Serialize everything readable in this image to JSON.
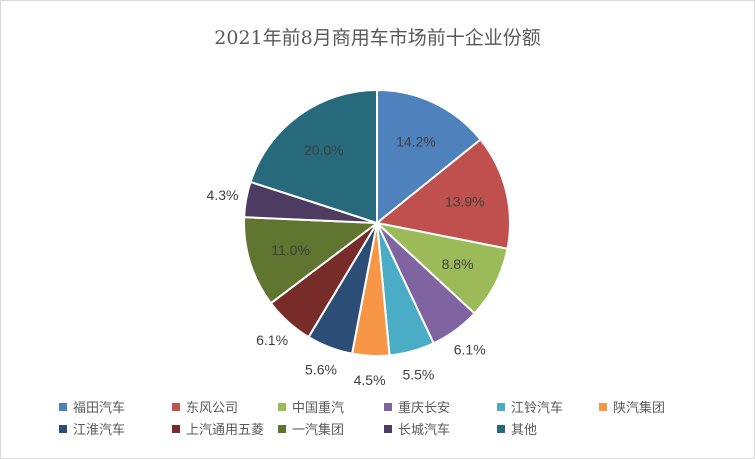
{
  "chart_data": {
    "type": "pie",
    "title": "2021年前8月商用车市场前十企业份额",
    "legend_position": "bottom",
    "series": [
      {
        "name": "福田汽车",
        "value": 14.2,
        "label": "14.2%",
        "color": "#4f81bd"
      },
      {
        "name": "东风公司",
        "value": 13.9,
        "label": "13.9%",
        "color": "#c0504d"
      },
      {
        "name": "中国重汽",
        "value": 8.8,
        "label": "8.8%",
        "color": "#9bbb59"
      },
      {
        "name": "重庆长安",
        "value": 6.1,
        "label": "6.1%",
        "color": "#8064a2"
      },
      {
        "name": "江铃汽车",
        "value": 5.5,
        "label": "5.5%",
        "color": "#4bacc6"
      },
      {
        "name": "陕汽集团",
        "value": 4.5,
        "label": "4.5%",
        "color": "#f79646"
      },
      {
        "name": "江淮汽车",
        "value": 5.6,
        "label": "5.6%",
        "color": "#2c4d75"
      },
      {
        "name": "上汽通用五菱",
        "value": 6.1,
        "label": "6.1%",
        "color": "#772c2a"
      },
      {
        "name": "一汽集团",
        "value": 11.0,
        "label": "11.0%",
        "color": "#5f7530"
      },
      {
        "name": "长城汽车",
        "value": 4.3,
        "label": "4.3%",
        "color": "#4d3b62"
      },
      {
        "name": "其他",
        "value": 20.0,
        "label": "20.0%",
        "color": "#276a7c"
      }
    ]
  }
}
